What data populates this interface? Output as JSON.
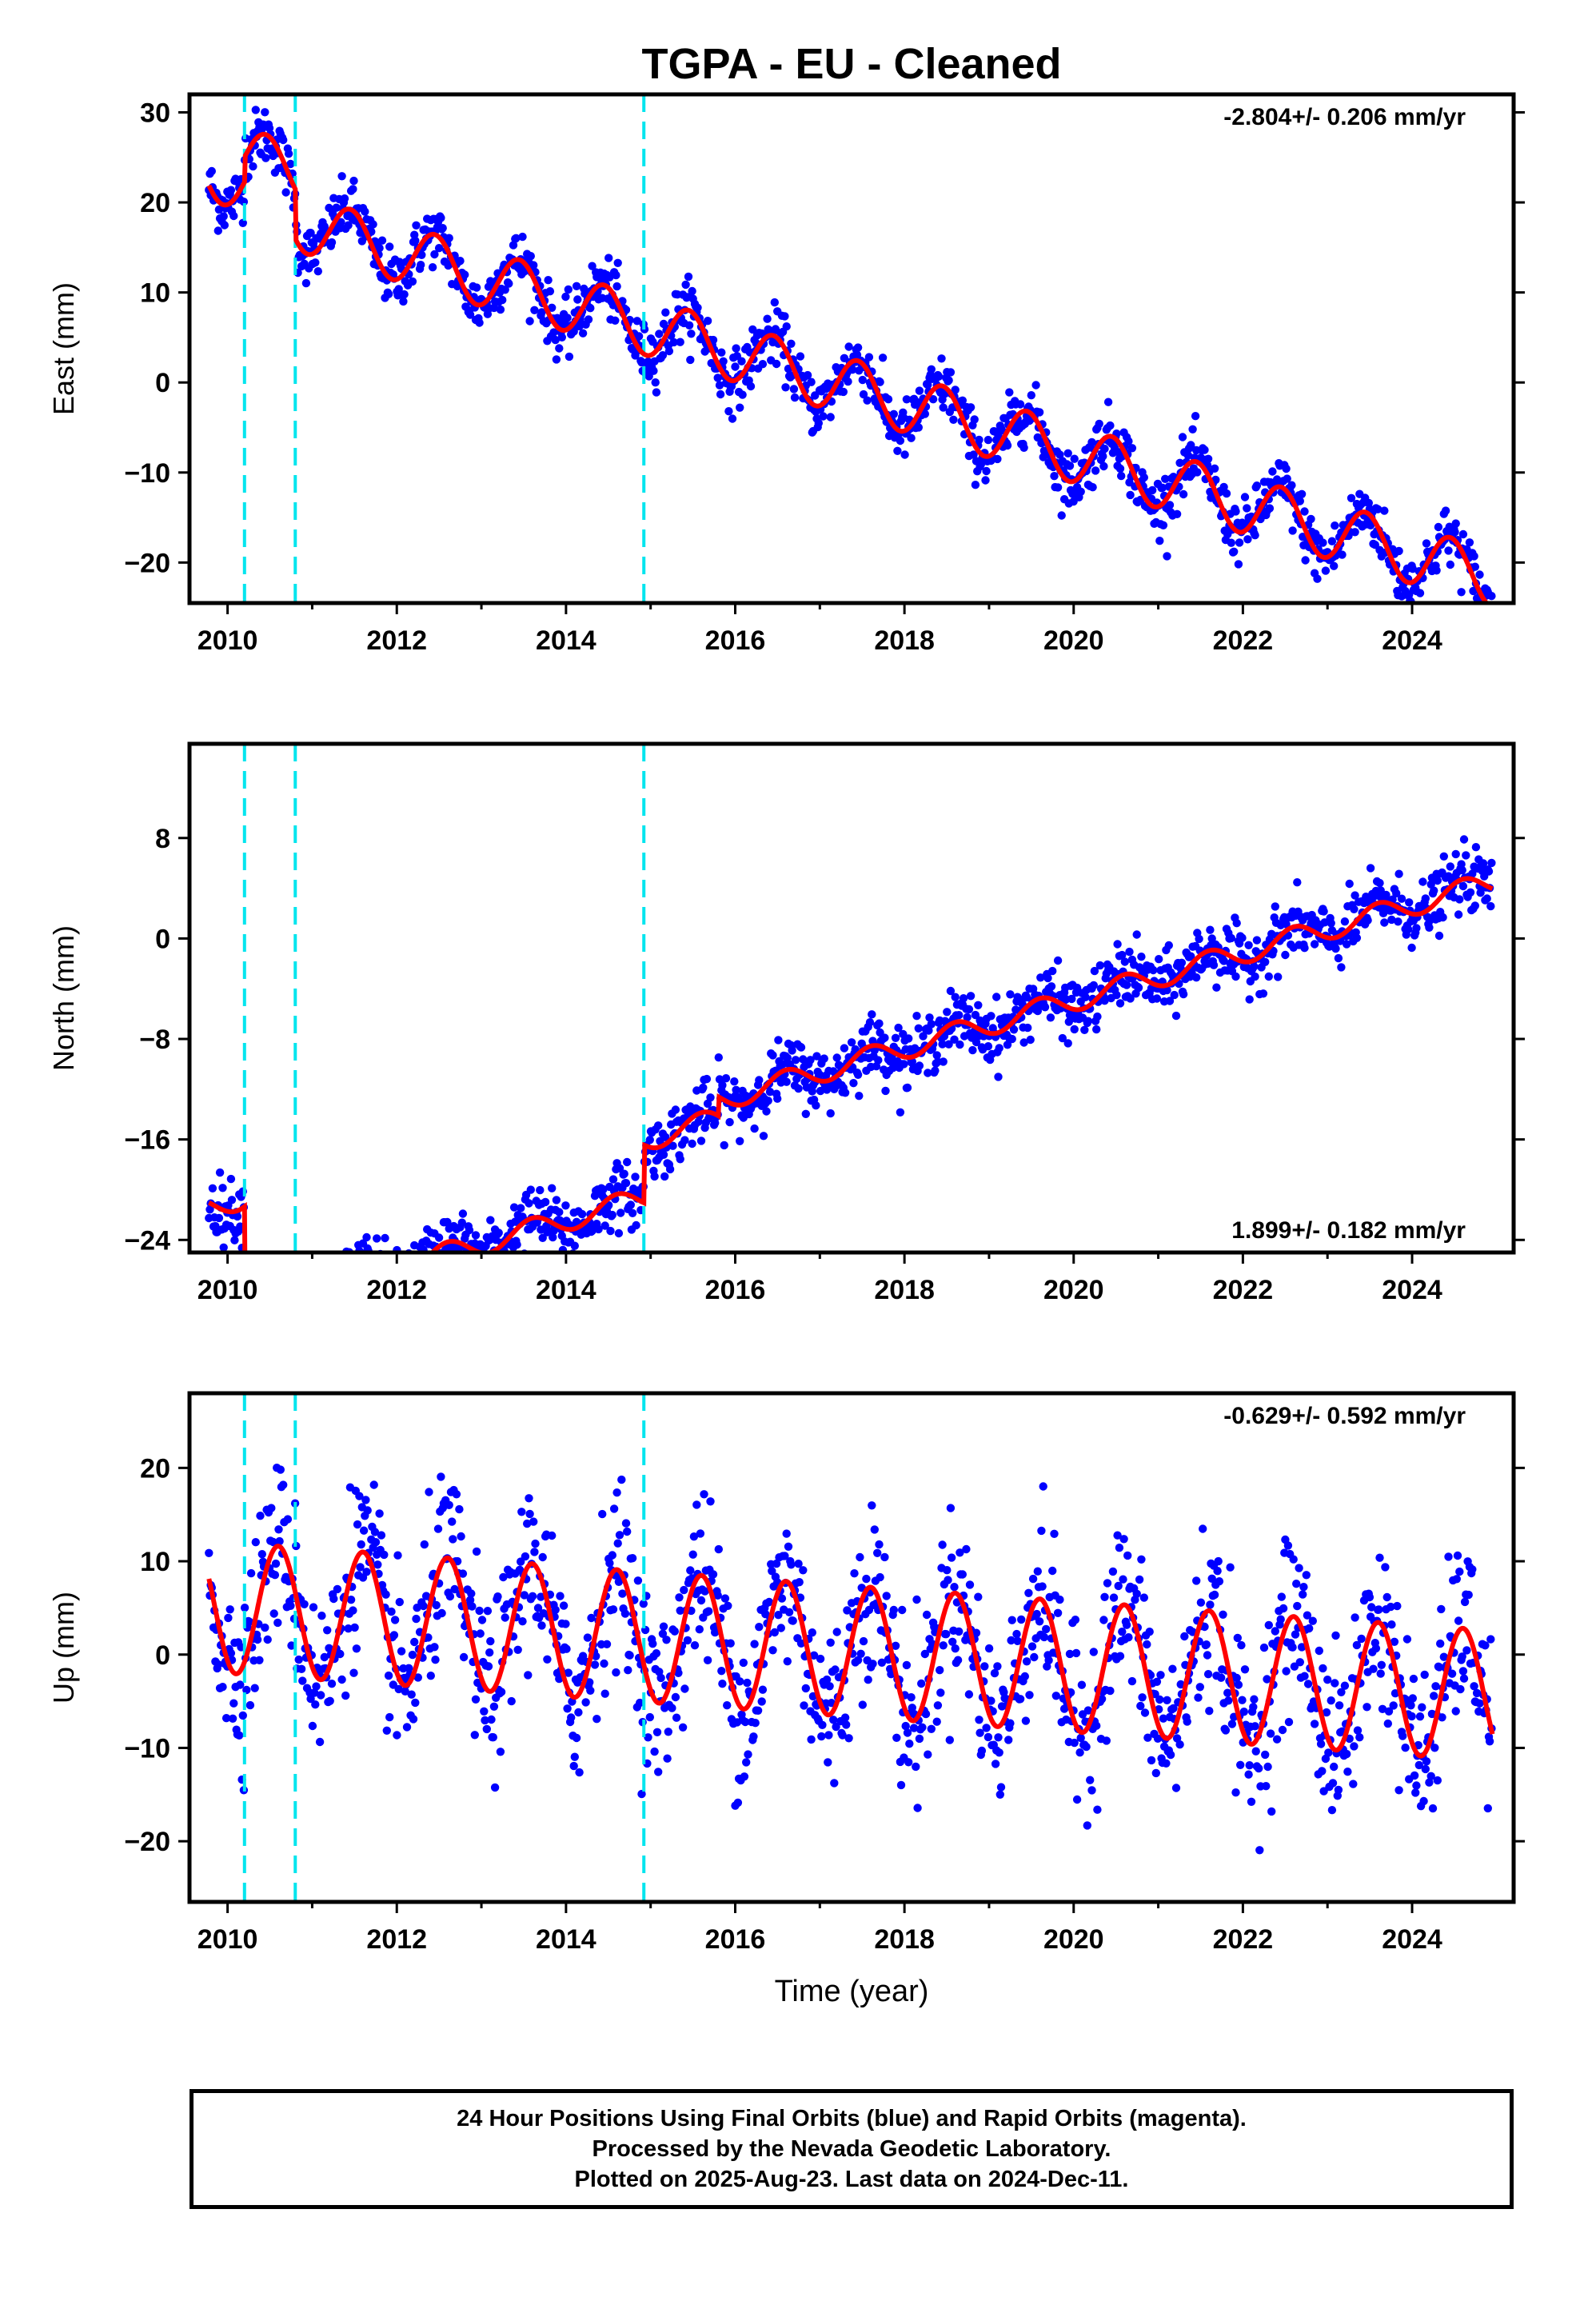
{
  "title": "TGPA  - EU - Cleaned",
  "x_axis_label": "Time (year)",
  "footer": {
    "line1": "24 Hour Positions Using Final Orbits (blue) and Rapid Orbits (magenta).",
    "line2": "Processed by the Nevada Geodetic Laboratory.",
    "line3": "Plotted on 2025-Aug-23. Last data on 2024-Dec-11."
  },
  "colors": {
    "points": "#0000ff",
    "model": "#ff0000",
    "offsets": "#00e5ee",
    "frame": "#000000"
  },
  "chart_data": [
    {
      "type": "scatter",
      "panel": "east",
      "ylabel": "East (mm)",
      "rate_text": "-2.804+/- 0.206 mm/yr",
      "rate_position": "top-right",
      "xlim": [
        2009.55,
        2025.2
      ],
      "ylim": [
        -24.5,
        32
      ],
      "x_ticks": [
        2010,
        2012,
        2014,
        2016,
        2018,
        2020,
        2022,
        2024
      ],
      "y_ticks": [
        -20,
        -10,
        0,
        10,
        20,
        30
      ],
      "y_tick_labels": [
        "−20",
        "−10",
        "0",
        "10",
        "20",
        "30"
      ],
      "offset_lines": [
        2010.2,
        2010.8,
        2014.92
      ],
      "data_span": [
        2009.78,
        2024.95
      ],
      "model": {
        "trend": {
          "at_2010": 22.8,
          "rate": -2.804
        },
        "annual_amplitude": 3.2,
        "annual_peak": 0.45,
        "steps": [
          {
            "x": 2010.2,
            "dy": 2.8
          },
          {
            "x": 2010.8,
            "dy": -5.5
          }
        ]
      },
      "scatter_noise": 1.6
    },
    {
      "type": "scatter",
      "panel": "north",
      "ylabel": "North (mm)",
      "rate_text": "1.899+/- 0.182 mm/yr",
      "rate_position": "bottom-right",
      "xlim": [
        2009.55,
        2025.2
      ],
      "ylim": [
        -25,
        15.5
      ],
      "x_ticks": [
        2010,
        2012,
        2014,
        2016,
        2018,
        2020,
        2022,
        2024
      ],
      "y_ticks": [
        -24,
        -16,
        -8,
        0,
        8
      ],
      "y_tick_labels": [
        "−24",
        "−16",
        "−8",
        "0",
        "8"
      ],
      "offset_lines": [
        2010.2,
        2010.8,
        2014.92
      ],
      "data_span": [
        2009.78,
        2024.95
      ],
      "model": {
        "trend": {
          "at_2010": -21.0,
          "rate": 1.899
        },
        "annual_amplitude": 0.9,
        "annual_peak": 0.6,
        "steps": [
          {
            "x": 2010.2,
            "dy": -9.0
          },
          {
            "x": 2014.92,
            "dy": 4.6
          },
          {
            "x": 2015.8,
            "dy": 1.5
          }
        ]
      },
      "scatter_noise": 1.2
    },
    {
      "type": "scatter",
      "panel": "up",
      "ylabel": "Up (mm)",
      "rate_text": "-0.629+/- 0.592 mm/yr",
      "rate_position": "top-right",
      "xlim": [
        2009.55,
        2025.2
      ],
      "ylim": [
        -26.5,
        28
      ],
      "x_ticks": [
        2010,
        2012,
        2014,
        2016,
        2018,
        2020,
        2022,
        2024
      ],
      "y_ticks": [
        -20,
        -10,
        0,
        10,
        20
      ],
      "y_tick_labels": [
        "−20",
        "−10",
        "0",
        "10",
        "20"
      ],
      "offset_lines": [
        2010.2,
        2010.8,
        2014.92
      ],
      "data_span": [
        2009.78,
        2024.95
      ],
      "model": {
        "trend": {
          "at_2010": 5.0,
          "rate": -0.629
        },
        "annual_amplitude": 7.0,
        "annual_peak": 0.6,
        "steps": []
      },
      "scatter_noise": 4.5
    }
  ]
}
